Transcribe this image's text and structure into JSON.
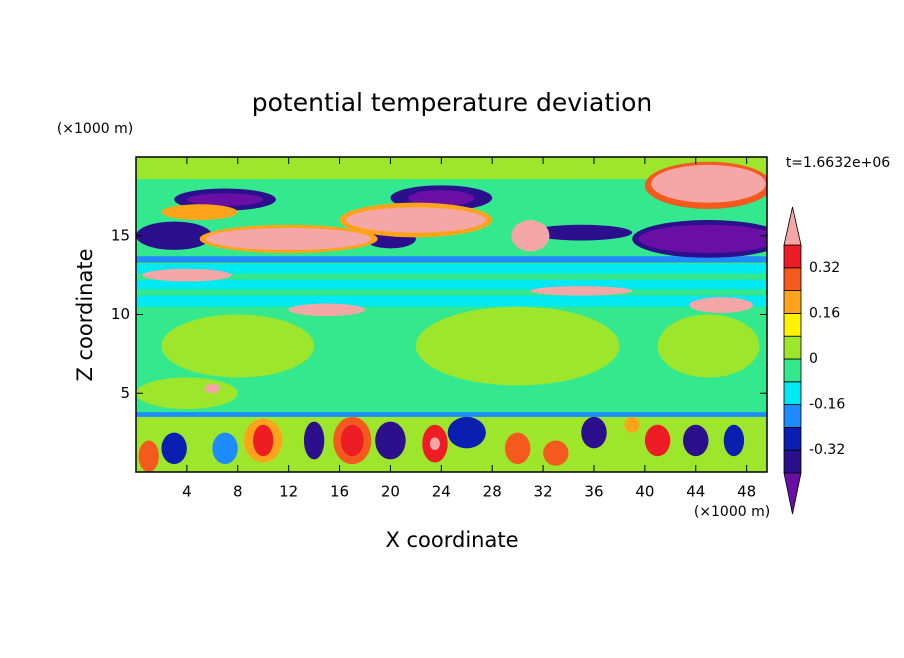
{
  "chart_data": {
    "type": "contour",
    "title": "potential temperature deviation",
    "xlabel": "X coordinate",
    "ylabel": "Z coordinate",
    "x_unit": "(×1000 m)",
    "y_unit": "(×1000 m)",
    "time_label": "t=1.6632e+06",
    "xlim": [
      0,
      49.6
    ],
    "ylim": [
      0,
      20
    ],
    "xticks": [
      4,
      8,
      12,
      16,
      20,
      24,
      28,
      32,
      36,
      40,
      44,
      48
    ],
    "yticks": [
      5,
      10,
      15
    ],
    "levels": [
      -0.4,
      -0.32,
      -0.24,
      -0.16,
      -0.08,
      0,
      0.08,
      0.16,
      0.24,
      0.32,
      0.4
    ],
    "colors": [
      "#6a0fa5",
      "#2b0f8c",
      "#0a1eb0",
      "#1e8cff",
      "#00e8f2",
      "#34e88e",
      "#9ee62c",
      "#fff200",
      "#ffa31a",
      "#f45a1e",
      "#ee1c25",
      "#f5a6a6"
    ],
    "colorbar_ticks": [
      0.32,
      0.16,
      0,
      -0.16,
      -0.32
    ],
    "bands": [
      {
        "z": [
          0,
          20
        ],
        "value": -0.04
      },
      {
        "z": [
          18.6,
          20
        ],
        "value": 0.04
      },
      {
        "z": [
          11.6,
          12.2
        ],
        "value": -0.12
      },
      {
        "z": [
          10.5,
          11.2
        ],
        "value": -0.12
      },
      {
        "z": [
          12.6,
          13.2
        ],
        "value": -0.12
      },
      {
        "z": [
          13.3,
          13.7
        ],
        "value": -0.2
      },
      {
        "z": [
          0,
          3.5
        ],
        "value": 0.04
      },
      {
        "z": [
          3.5,
          3.8
        ],
        "value": -0.2
      }
    ],
    "cells": [
      {
        "x": 8,
        "z": 8,
        "rx": 6,
        "rz": 2,
        "value": 0.04
      },
      {
        "x": 30,
        "z": 8,
        "rx": 8,
        "rz": 2.5,
        "value": 0.04
      },
      {
        "x": 45,
        "z": 8,
        "rx": 4,
        "rz": 2,
        "value": 0.04
      },
      {
        "x": 4,
        "z": 5,
        "rx": 4,
        "rz": 1,
        "value": 0.04
      },
      {
        "x": 10,
        "z": 2,
        "rx": 1.5,
        "rz": 1.4,
        "value": 0.2
      },
      {
        "x": 10,
        "z": 2,
        "rx": 0.8,
        "rz": 1,
        "value": 0.36
      },
      {
        "x": 17,
        "z": 2,
        "rx": 1.5,
        "rz": 1.5,
        "value": 0.28
      },
      {
        "x": 17,
        "z": 2,
        "rx": 0.9,
        "rz": 1,
        "value": 0.36
      },
      {
        "x": 20,
        "z": 2,
        "rx": 1.2,
        "rz": 1.2,
        "value": -0.36
      },
      {
        "x": 14,
        "z": 2,
        "rx": 0.8,
        "rz": 1.2,
        "value": -0.36
      },
      {
        "x": 3,
        "z": 1.5,
        "rx": 1,
        "rz": 1,
        "value": -0.28
      },
      {
        "x": 26,
        "z": 2.5,
        "rx": 1.5,
        "rz": 1,
        "value": -0.28
      },
      {
        "x": 30,
        "z": 1.5,
        "rx": 1,
        "rz": 1,
        "value": 0.28
      },
      {
        "x": 36,
        "z": 2.5,
        "rx": 1,
        "rz": 1,
        "value": -0.36
      },
      {
        "x": 44,
        "z": 2,
        "rx": 1,
        "rz": 1,
        "value": -0.36
      },
      {
        "x": 47,
        "z": 2,
        "rx": 0.8,
        "rz": 1,
        "value": -0.28
      },
      {
        "x": 23.5,
        "z": 1.8,
        "rx": 1,
        "rz": 1.2,
        "value": 0.36
      },
      {
        "x": 23.5,
        "z": 1.8,
        "rx": 0.4,
        "rz": 0.4,
        "value": 0.44
      },
      {
        "x": 33,
        "z": 1.2,
        "rx": 1,
        "rz": 0.8,
        "value": 0.28
      },
      {
        "x": 41,
        "z": 2,
        "rx": 1,
        "rz": 1,
        "value": 0.36
      },
      {
        "x": 7,
        "z": 1.5,
        "rx": 1,
        "rz": 1,
        "value": -0.2
      },
      {
        "x": 39,
        "z": 3,
        "rx": 0.6,
        "rz": 0.5,
        "value": 0.2
      },
      {
        "x": 1,
        "z": 1,
        "rx": 0.8,
        "rz": 1,
        "value": 0.28
      },
      {
        "x": 7,
        "z": 17.3,
        "rx": 4,
        "rz": 0.7,
        "value": -0.36
      },
      {
        "x": 7,
        "z": 17.3,
        "rx": 3,
        "rz": 0.4,
        "value": -0.44
      },
      {
        "x": 24,
        "z": 17.4,
        "rx": 4,
        "rz": 0.8,
        "value": -0.36
      },
      {
        "x": 24,
        "z": 17.4,
        "rx": 2.6,
        "rz": 0.5,
        "value": -0.44
      },
      {
        "x": 35,
        "z": 15.2,
        "rx": 4,
        "rz": 0.5,
        "value": -0.36
      },
      {
        "x": 45,
        "z": 14.8,
        "rx": 6,
        "rz": 1.2,
        "value": -0.36
      },
      {
        "x": 45,
        "z": 14.8,
        "rx": 5.5,
        "rz": 0.9,
        "value": -0.44
      },
      {
        "x": 3,
        "z": 15,
        "rx": 3,
        "rz": 0.9,
        "value": -0.36
      },
      {
        "x": 16,
        "z": 14.5,
        "rx": 1,
        "rz": 0.4,
        "value": -0.36
      },
      {
        "x": 20,
        "z": 14.8,
        "rx": 2,
        "rz": 0.6,
        "value": -0.36
      },
      {
        "x": 12,
        "z": 14.8,
        "rx": 7,
        "rz": 0.9,
        "value": 0.2
      },
      {
        "x": 12,
        "z": 14.8,
        "rx": 6.5,
        "rz": 0.7,
        "value": 0.44
      },
      {
        "x": 22,
        "z": 16,
        "rx": 6,
        "rz": 1.1,
        "value": 0.2
      },
      {
        "x": 22,
        "z": 16,
        "rx": 5.5,
        "rz": 0.8,
        "value": 0.44
      },
      {
        "x": 45,
        "z": 18.2,
        "rx": 5,
        "rz": 1.5,
        "value": 0.28
      },
      {
        "x": 45,
        "z": 18.3,
        "rx": 4.5,
        "rz": 1.2,
        "value": 0.44
      },
      {
        "x": 4,
        "z": 12.5,
        "rx": 3.5,
        "rz": 0.4,
        "value": 0.44
      },
      {
        "x": 15,
        "z": 10.3,
        "rx": 3,
        "rz": 0.4,
        "value": 0.44
      },
      {
        "x": 35,
        "z": 11.5,
        "rx": 4,
        "rz": 0.3,
        "value": 0.44
      },
      {
        "x": 46,
        "z": 10.6,
        "rx": 2.5,
        "rz": 0.5,
        "value": 0.44
      },
      {
        "x": 31,
        "z": 15,
        "rx": 1.5,
        "rz": 1,
        "value": 0.44
      },
      {
        "x": 6,
        "z": 5.3,
        "rx": 0.6,
        "rz": 0.3,
        "value": 0.44
      },
      {
        "x": 5,
        "z": 16.5,
        "rx": 3,
        "rz": 0.5,
        "value": 0.2
      }
    ]
  }
}
